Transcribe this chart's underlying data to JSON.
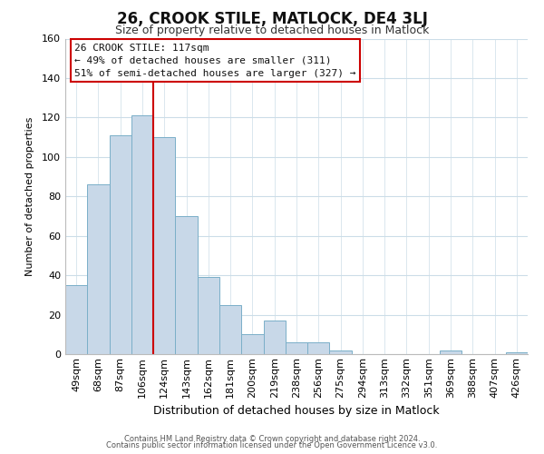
{
  "title": "26, CROOK STILE, MATLOCK, DE4 3LJ",
  "subtitle": "Size of property relative to detached houses in Matlock",
  "xlabel": "Distribution of detached houses by size in Matlock",
  "ylabel": "Number of detached properties",
  "bar_labels": [
    "49sqm",
    "68sqm",
    "87sqm",
    "106sqm",
    "124sqm",
    "143sqm",
    "162sqm",
    "181sqm",
    "200sqm",
    "219sqm",
    "238sqm",
    "256sqm",
    "275sqm",
    "294sqm",
    "313sqm",
    "332sqm",
    "351sqm",
    "369sqm",
    "388sqm",
    "407sqm",
    "426sqm"
  ],
  "bar_values": [
    35,
    86,
    111,
    121,
    110,
    70,
    39,
    25,
    10,
    17,
    6,
    6,
    2,
    0,
    0,
    0,
    0,
    2,
    0,
    0,
    1
  ],
  "bar_color": "#c8d8e8",
  "bar_edge_color": "#7aafc8",
  "vline_color": "#cc0000",
  "vline_x_index": 3.5,
  "ylim": [
    0,
    160
  ],
  "yticks": [
    0,
    20,
    40,
    60,
    80,
    100,
    120,
    140,
    160
  ],
  "annotation_title": "26 CROOK STILE: 117sqm",
  "annotation_line1": "← 49% of detached houses are smaller (311)",
  "annotation_line2": "51% of semi-detached houses are larger (327) →",
  "annotation_box_color": "#ffffff",
  "annotation_box_edge": "#cc0000",
  "footer1": "Contains HM Land Registry data © Crown copyright and database right 2024.",
  "footer2": "Contains public sector information licensed under the Open Government Licence v3.0.",
  "background_color": "#ffffff",
  "grid_color": "#ccdde8",
  "title_fontsize": 12,
  "subtitle_fontsize": 9,
  "xlabel_fontsize": 9,
  "ylabel_fontsize": 8,
  "tick_fontsize": 8,
  "annot_fontsize": 8,
  "footer_fontsize": 6
}
